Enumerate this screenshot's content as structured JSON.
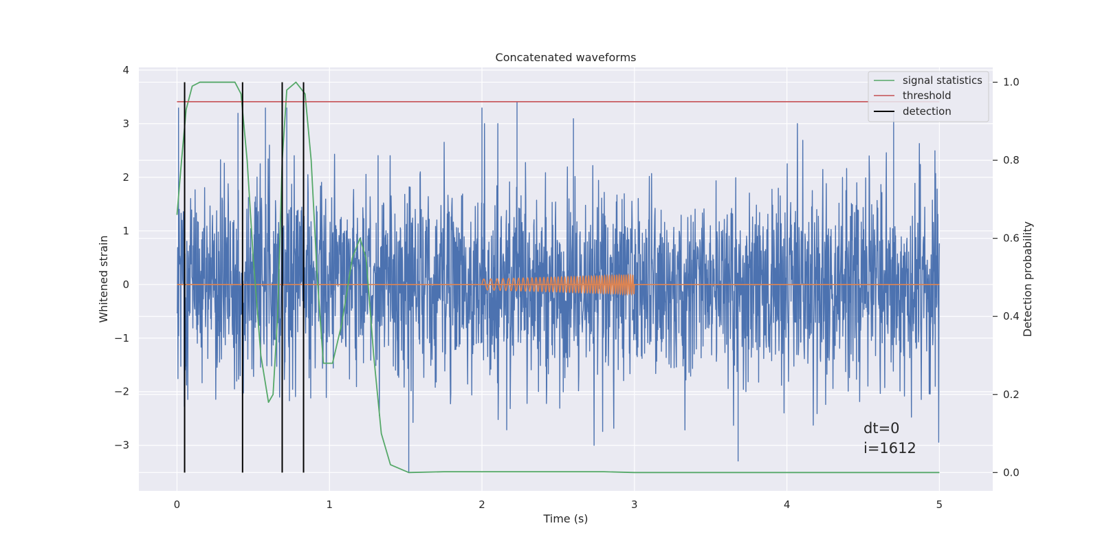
{
  "chart_data": {
    "type": "line",
    "title": "Concatenated waveforms",
    "xlabel": "Time (s)",
    "ylabel": "Whitened strain",
    "ylabel_right": "Detection probability",
    "xlim": [
      -0.25,
      5.35
    ],
    "ylim": [
      -3.85,
      4.05
    ],
    "ylim_right": [
      -0.047,
      1.038
    ],
    "x_ticks": [
      0,
      1,
      2,
      3,
      4,
      5
    ],
    "x_tick_labels": [
      "0",
      "1",
      "2",
      "3",
      "4",
      "5"
    ],
    "y_ticks": [
      -3,
      -2,
      -1,
      0,
      1,
      2,
      3,
      4
    ],
    "y_tick_labels": [
      "−3",
      "−2",
      "−1",
      "0",
      "1",
      "2",
      "3",
      "4"
    ],
    "y_right_ticks": [
      0.0,
      0.2,
      0.4,
      0.6,
      0.8,
      1.0
    ],
    "y_right_tick_labels": [
      "0.0",
      "0.2",
      "0.4",
      "0.6",
      "0.8",
      "1.0"
    ],
    "grid": true,
    "legend_placement": "top-right",
    "series": [
      {
        "name": "",
        "kind": "noise",
        "axis": "left",
        "color": "#4c72b0",
        "x_range": [
          0,
          5
        ],
        "envelope": [
          -2.5,
          2.5
        ],
        "peaks": [
          [
            0.01,
            3.3
          ],
          [
            0.4,
            3.2
          ],
          [
            0.58,
            3.3
          ],
          [
            0.72,
            3.3
          ],
          [
            2.0,
            3.3
          ],
          [
            2.23,
            3.4
          ],
          [
            2.6,
            3.1
          ],
          [
            3.68,
            -3.3
          ],
          [
            4.7,
            3.2
          ],
          [
            1.52,
            -3.5
          ]
        ]
      },
      {
        "name": "",
        "kind": "chirp",
        "axis": "left",
        "color": "#dd8452",
        "x_range": [
          2.0,
          3.0
        ],
        "amplitude_range": [
          0.1,
          0.18
        ],
        "frequency_range_hz": [
          20,
          70
        ],
        "baseline": 0
      },
      {
        "name": "signal statistics",
        "axis": "right",
        "color": "#55a868",
        "points": [
          [
            0.0,
            0.66
          ],
          [
            0.03,
            0.8
          ],
          [
            0.06,
            0.93
          ],
          [
            0.1,
            0.99
          ],
          [
            0.15,
            1.0
          ],
          [
            0.38,
            1.0
          ],
          [
            0.42,
            0.97
          ],
          [
            0.46,
            0.8
          ],
          [
            0.5,
            0.55
          ],
          [
            0.55,
            0.3
          ],
          [
            0.6,
            0.18
          ],
          [
            0.63,
            0.2
          ],
          [
            0.66,
            0.4
          ],
          [
            0.69,
            0.8
          ],
          [
            0.72,
            0.98
          ],
          [
            0.78,
            1.0
          ],
          [
            0.84,
            0.97
          ],
          [
            0.88,
            0.8
          ],
          [
            0.92,
            0.5
          ],
          [
            0.96,
            0.28
          ],
          [
            1.02,
            0.28
          ],
          [
            1.08,
            0.38
          ],
          [
            1.15,
            0.55
          ],
          [
            1.2,
            0.6
          ],
          [
            1.24,
            0.55
          ],
          [
            1.29,
            0.3
          ],
          [
            1.34,
            0.1
          ],
          [
            1.4,
            0.02
          ],
          [
            1.52,
            0.0
          ],
          [
            1.75,
            0.002
          ],
          [
            2.8,
            0.002
          ],
          [
            3.0,
            0.0
          ],
          [
            5.0,
            0.0
          ]
        ]
      },
      {
        "name": "threshold",
        "axis": "right",
        "color": "#c44e52",
        "x_range": [
          0,
          5
        ],
        "value": 0.95
      },
      {
        "name": "detection",
        "axis": "right",
        "color": "#000000",
        "x": [
          0.05,
          0.43,
          0.69,
          0.83
        ],
        "y_range": [
          0,
          1.0
        ]
      }
    ],
    "annotations": [
      "dt=0",
      "i=1612"
    ]
  }
}
